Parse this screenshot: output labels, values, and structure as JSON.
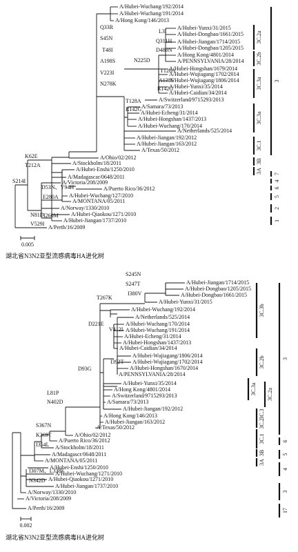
{
  "trees": [
    {
      "tips": [
        "A/Hubei-Wuchang/192/2014",
        "A/Hubei-Wuchang/191/2014",
        "A/Hong Kong/146/2013",
        "A/Hubei-Yunxi/31/2015",
        "A/Hubei-Dongbao/1661/2015",
        "A/Hubei-Jiangan/1714/2015",
        "A/Hubei-Dongbao/1205/2015",
        "A/Hong Kong/4801/2014",
        "A/PENNSYLVANIA/28/2014",
        "A/Hubei-Hongshan/1679/2014",
        "A/Hubei-Wujiagang/1702/2014",
        "A/Hubei-Wujiagang/1806/2014",
        "A/Hubei-Yunxi/35/2014",
        "A/Hubei-Caidian/34/2014",
        "A/Switzerland/9715293/2013",
        "A/Samara/73/2013",
        "A/Hubei-Echeng/31/2014",
        "A/Hubei-Hongshan/1437/2013",
        "A/Hubei-Wuchang/170/2014",
        "A/Netherlands/525/2014",
        "A/Hubei-Jiangan/192/2012",
        "A/Hubei-Jiangan/163/2012",
        "A/Texas/50/2012",
        "A/Ohio/02/2012",
        "A/Stockholm/18/2011",
        "A/Hubei-Enshi/1250/2010",
        "A/Madagascar/0648/2011",
        "A/Victoria/208/2009",
        "A/Puerto Rico/36/2012",
        "A/Hubei-Wuchang/127/2010",
        "A/MONTANA/05/2011",
        "A/Norway/1330/2010",
        "A/Hubei-Qiaokou/1271/2010",
        "A/Hubei-Jiangan/1737/2010",
        "A/Perth/16/2009"
      ],
      "mutations": [
        "Q33R",
        "S45N",
        "T48I",
        "A198S",
        "V223I",
        "N278K",
        "L3I",
        "Q311H",
        "D489N",
        "N225D",
        "T128A",
        "A138S",
        "R142G",
        "T128A",
        "R142G",
        "K62E",
        "T212A",
        "S214I",
        "D53N、Y94H",
        "E280A",
        "I260M",
        "N81D",
        "V529I"
      ],
      "clades": [
        "3C.2a",
        "3C.2b",
        "3C.3a",
        "3C.3a",
        "3C.1",
        "3B",
        "3A"
      ],
      "groups": [
        "3",
        "7",
        "4",
        "6",
        "5",
        "2",
        "1"
      ],
      "scale": "0.005",
      "caption": "湖北省N3N2亚型流感病毒HA进化树"
    },
    {
      "tips": [
        "A/Hubei-Jiangan/1714/2015",
        "A/Hubei-Dongbao/1205/2015",
        "A/Hubei-Dongbao/1661/2015",
        "A/Hubei-Yunxi/31/2015",
        "A/Hubei-Wuchang/192/2014",
        "A/Netherlands/525/2014",
        "A/Hubei-Wuchang/170/2014",
        "A/Hubei-Wuchang/191/2014",
        "A/Hubei-Echeng/31/2014",
        "A/Hubei-Hongshan/1437/2013",
        "A/Hubei-Caidian/34/2014",
        "A/Hubei-Wujiagang/1806/2014",
        "A/Hubei-Wujiagang/1702/2014",
        "A/Hubei-Hongshan/1670/2014",
        "A/PENNSYLVANIA/28/2014",
        "A/Hubei-Yunxi/35/2014",
        "A/Hong Kong/4801/2014",
        "A/Switzerland/9715293/2013",
        "A/Samara/73/2013",
        "A/Hubei-Jiangan/192/2012",
        "A/Hong Kong/146/2013",
        "A/Hubei-Jiangan/163/2012",
        "A/Texas/50/2012",
        "A/Ohio/02/2012",
        "A/Puerto Rico/36/2012",
        "A/Stockholm/18/2011",
        "A/Madagascr/0648/2011",
        "A/MONTANA/05/2011",
        "A/Hubei-Enshi/1250/2010",
        "A/Hubei-Wuchang/1271/2010",
        "A/Hubei-Qiaokou/1271/2010",
        "A/Hubei-Jiangan/1737/2010",
        "A/Norway/1330/2010",
        "A/Victoria/208/2009",
        "A/Perth/16/2009"
      ],
      "mutations": [
        "S245N",
        "S247T",
        "I380V",
        "T267K",
        "D221E",
        "V412I",
        "I392T",
        "D93G",
        "L81P",
        "N402D",
        "S367N",
        "K369T",
        "I354L",
        "I307M、L338F",
        "N342D"
      ],
      "clades": [
        "3C.3b",
        "3C.2b",
        "3C.3a",
        "3C.2a",
        "3C.3",
        "3C.2",
        "3C.1",
        "3B",
        "3A"
      ],
      "groups": [
        "3",
        "6",
        "5",
        "4",
        "3",
        "17"
      ],
      "scale": "0.002",
      "caption": "湖北省N3N2亚型流感病毒HA进化树"
    }
  ]
}
